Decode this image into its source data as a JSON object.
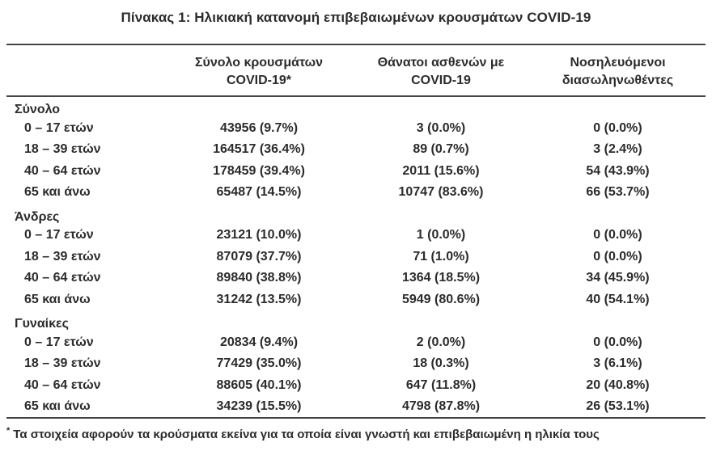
{
  "page_title": "Πίνακας 1: Ηλικιακή κατανομή επιβεβαιωμένων κρουσμάτων COVID-19",
  "table": {
    "headers": {
      "col_cases": {
        "line1": "Σύνολο κρουσμάτων",
        "line2": "COVID-19*"
      },
      "col_deaths": {
        "line1": "Θάνατοι ασθενών με",
        "line2": "COVID-19"
      },
      "col_intubated": {
        "line1": "Νοσηλευόμενοι",
        "line2": "διασωληνωθέντες"
      }
    },
    "sections": [
      {
        "label": "Σύνολο",
        "rows": [
          {
            "age": "0 – 17 ετών",
            "cases": "43956 (9.7%)",
            "deaths": "3 (0.0%)",
            "intubated": "0 (0.0%)"
          },
          {
            "age": "18 – 39 ετών",
            "cases": "164517 (36.4%)",
            "deaths": "89 (0.7%)",
            "intubated": "3 (2.4%)"
          },
          {
            "age": "40 – 64 ετών",
            "cases": "178459 (39.4%)",
            "deaths": "2011 (15.6%)",
            "intubated": "54 (43.9%)"
          },
          {
            "age": "65 και άνω",
            "cases": "65487 (14.5%)",
            "deaths": "10747 (83.6%)",
            "intubated": "66 (53.7%)"
          }
        ]
      },
      {
        "label": "Άνδρες",
        "rows": [
          {
            "age": "0 – 17 ετών",
            "cases": "23121 (10.0%)",
            "deaths": "1 (0.0%)",
            "intubated": "0 (0.0%)"
          },
          {
            "age": "18 – 39 ετών",
            "cases": "87079 (37.7%)",
            "deaths": "71 (1.0%)",
            "intubated": "0 (0.0%)"
          },
          {
            "age": "40 – 64 ετών",
            "cases": "89840 (38.8%)",
            "deaths": "1364 (18.5%)",
            "intubated": "34 (45.9%)"
          },
          {
            "age": "65 και άνω",
            "cases": "31242 (13.5%)",
            "deaths": "5949 (80.6%)",
            "intubated": "40 (54.1%)"
          }
        ]
      },
      {
        "label": "Γυναίκες",
        "rows": [
          {
            "age": "0 – 17 ετών",
            "cases": "20834 (9.4%)",
            "deaths": "2 (0.0%)",
            "intubated": "0 (0.0%)"
          },
          {
            "age": "18 – 39 ετών",
            "cases": "77429 (35.0%)",
            "deaths": "18 (0.3%)",
            "intubated": "3 (6.1%)"
          },
          {
            "age": "40 – 64 ετών",
            "cases": "88605 (40.1%)",
            "deaths": "647 (11.8%)",
            "intubated": "20 (40.8%)"
          },
          {
            "age": "65 και άνω",
            "cases": "34239 (15.5%)",
            "deaths": "4798 (87.8%)",
            "intubated": "26 (53.1%)"
          }
        ]
      }
    ],
    "footnote": {
      "marker": "*",
      "text": "Τα στοιχεία αφορούν τα κρούσματα εκείνα για τα οποία είναι γνωστή και επιβεβαιωμένη η ηλικία τους"
    }
  },
  "colors": {
    "text": "#2b2b2b",
    "rule": "#454545",
    "background": "#ffffff"
  }
}
